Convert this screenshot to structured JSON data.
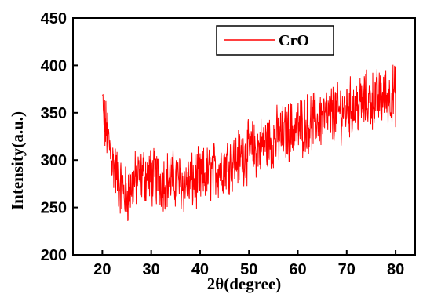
{
  "chart_data": {
    "type": "line",
    "title": "",
    "xlabel": "2θ(degree)",
    "ylabel": "Intensity(a.u.)",
    "xlim": [
      14,
      84
    ],
    "ylim": [
      200,
      450
    ],
    "xticks": [
      20,
      30,
      40,
      50,
      60,
      70,
      80
    ],
    "yticks": [
      200,
      250,
      300,
      350,
      400,
      450
    ],
    "grid": false,
    "legend_position": "top-right",
    "series": [
      {
        "name": "CrO",
        "color": "#ff0000",
        "noisy": true,
        "x": [
          20,
          21,
          22,
          23,
          24,
          25,
          26,
          27,
          28,
          29,
          30,
          31,
          32,
          33,
          34,
          35,
          36,
          37,
          38,
          39,
          40,
          41,
          42,
          43,
          44,
          45,
          46,
          47,
          48,
          49,
          50,
          51,
          52,
          53,
          54,
          55,
          56,
          57,
          58,
          59,
          60,
          61,
          62,
          63,
          64,
          65,
          66,
          67,
          68,
          69,
          70,
          71,
          72,
          73,
          74,
          75,
          76,
          77,
          78,
          79,
          80
        ],
        "values": [
          345,
          328,
          300,
          283,
          268,
          263,
          272,
          280,
          285,
          283,
          282,
          281,
          279,
          279,
          280,
          279,
          277,
          275,
          276,
          278,
          280,
          283,
          286,
          289,
          292,
          295,
          298,
          300,
          303,
          306,
          309,
          311,
          313,
          316,
          319,
          322,
          325,
          327,
          330,
          332,
          334,
          336,
          339,
          340,
          343,
          345,
          346,
          349,
          350,
          352,
          354,
          356,
          358,
          360,
          362,
          363,
          364,
          366,
          367,
          368,
          369
        ]
      }
    ]
  }
}
